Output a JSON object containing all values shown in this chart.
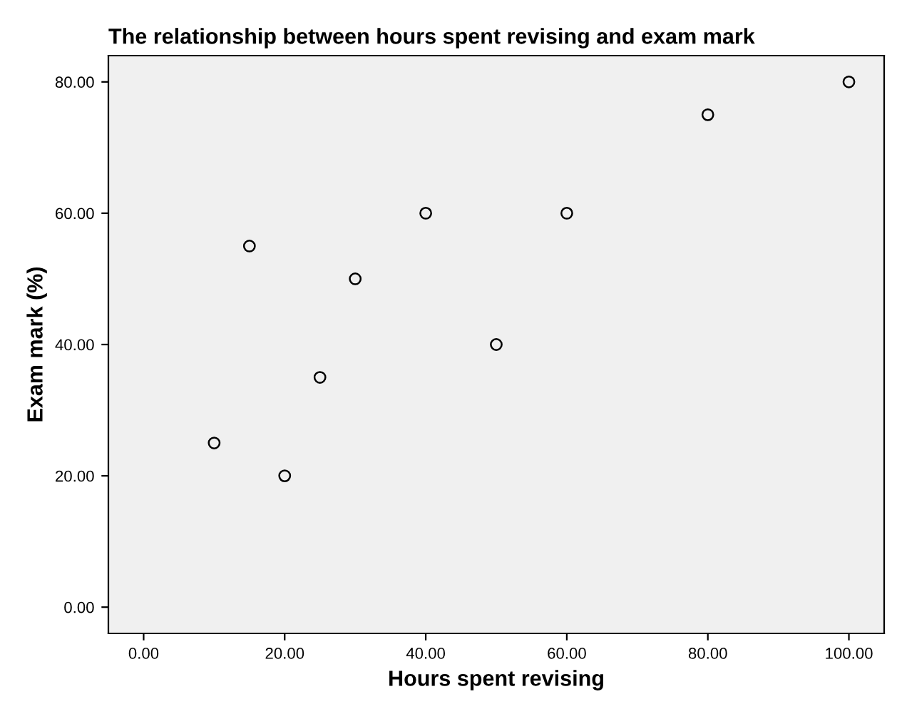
{
  "chart_data": {
    "type": "scatter",
    "title": "The relationship between hours spent revising and exam mark",
    "xlabel": "Hours spent revising",
    "ylabel": "Exam mark (%)",
    "x": [
      10,
      15,
      20,
      25,
      30,
      40,
      50,
      60,
      80,
      100
    ],
    "values": [
      25,
      55,
      20,
      35,
      50,
      60,
      40,
      60,
      75,
      80
    ],
    "color": "#000000",
    "marker": "circle",
    "grid": false,
    "xlim": [
      -5,
      105
    ],
    "ylim": [
      -4,
      84
    ],
    "xticks": [
      {
        "value": 0,
        "label": "0.00"
      },
      {
        "value": 20,
        "label": "20.00"
      },
      {
        "value": 40,
        "label": "40.00"
      },
      {
        "value": 60,
        "label": "60.00"
      },
      {
        "value": 80,
        "label": "80.00"
      },
      {
        "value": 100,
        "label": "100.00"
      }
    ],
    "yticks": [
      {
        "value": 0,
        "label": "0.00"
      },
      {
        "value": 20,
        "label": "20.00"
      },
      {
        "value": 40,
        "label": "40.00"
      },
      {
        "value": 60,
        "label": "60.00"
      },
      {
        "value": 80,
        "label": "80.00"
      }
    ]
  }
}
